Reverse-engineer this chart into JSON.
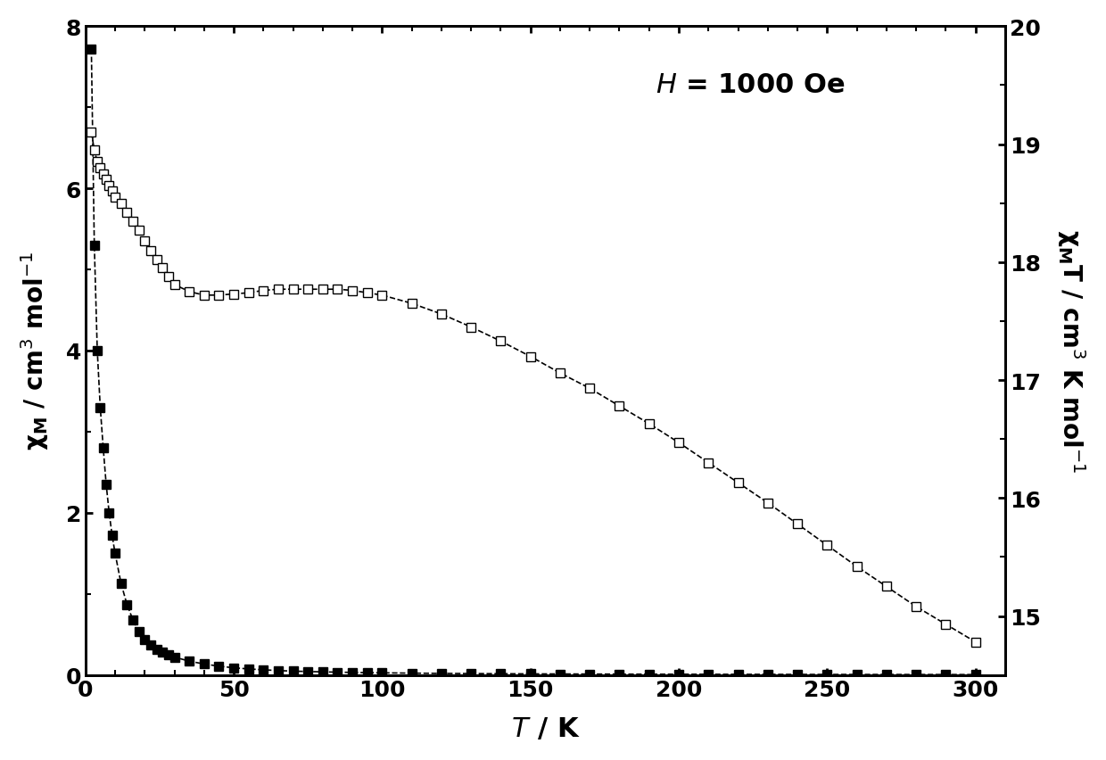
{
  "title_annotation": "H = 1000 Oe",
  "xlabel": "T / K",
  "ylabel_left": "χ_M / cm³ mol⁻¹",
  "ylabel_right": "χ_M T / cm³ K mol⁻¹",
  "xlim": [
    0,
    310
  ],
  "ylim_left": [
    0,
    8
  ],
  "ylim_right": [
    14.5,
    20
  ],
  "yticks_left": [
    0,
    2,
    4,
    6,
    8
  ],
  "yticks_right": [
    15,
    16,
    17,
    18,
    19,
    20
  ],
  "xticks": [
    0,
    50,
    100,
    150,
    200,
    250,
    300
  ],
  "background": "#ffffff",
  "chi_T_color": "#888888",
  "chi_color": "#000000",
  "T": [
    2,
    3,
    4,
    5,
    6,
    7,
    8,
    9,
    10,
    12,
    14,
    16,
    18,
    20,
    22,
    24,
    26,
    28,
    30,
    35,
    40,
    45,
    50,
    55,
    60,
    65,
    70,
    75,
    80,
    85,
    90,
    95,
    100,
    110,
    120,
    130,
    140,
    150,
    160,
    170,
    180,
    190,
    200,
    210,
    220,
    230,
    240,
    250,
    260,
    270,
    280,
    290,
    300
  ],
  "chi": [
    7.72,
    5.3,
    4.0,
    3.3,
    2.8,
    2.35,
    2.0,
    1.72,
    1.5,
    1.13,
    0.87,
    0.68,
    0.54,
    0.44,
    0.37,
    0.32,
    0.28,
    0.25,
    0.22,
    0.17,
    0.135,
    0.108,
    0.088,
    0.074,
    0.063,
    0.054,
    0.047,
    0.042,
    0.038,
    0.034,
    0.031,
    0.028,
    0.026,
    0.022,
    0.019,
    0.017,
    0.015,
    0.013,
    0.012,
    0.011,
    0.01,
    0.009,
    0.0085,
    0.008,
    0.0075,
    0.007,
    0.0065,
    0.006,
    0.0058,
    0.0055,
    0.0052,
    0.0049,
    0.0045
  ],
  "chiT": [
    19.1,
    18.95,
    18.85,
    18.8,
    18.75,
    18.7,
    18.65,
    18.6,
    18.55,
    18.5,
    18.42,
    18.35,
    18.27,
    18.18,
    18.1,
    18.02,
    17.95,
    17.88,
    17.81,
    17.75,
    17.72,
    17.72,
    17.73,
    17.74,
    17.76,
    17.77,
    17.77,
    17.77,
    17.77,
    17.77,
    17.76,
    17.74,
    17.72,
    17.65,
    17.56,
    17.45,
    17.33,
    17.2,
    17.06,
    16.93,
    16.78,
    16.63,
    16.47,
    16.3,
    16.13,
    15.96,
    15.78,
    15.6,
    15.42,
    15.25,
    15.08,
    14.93,
    14.78
  ]
}
